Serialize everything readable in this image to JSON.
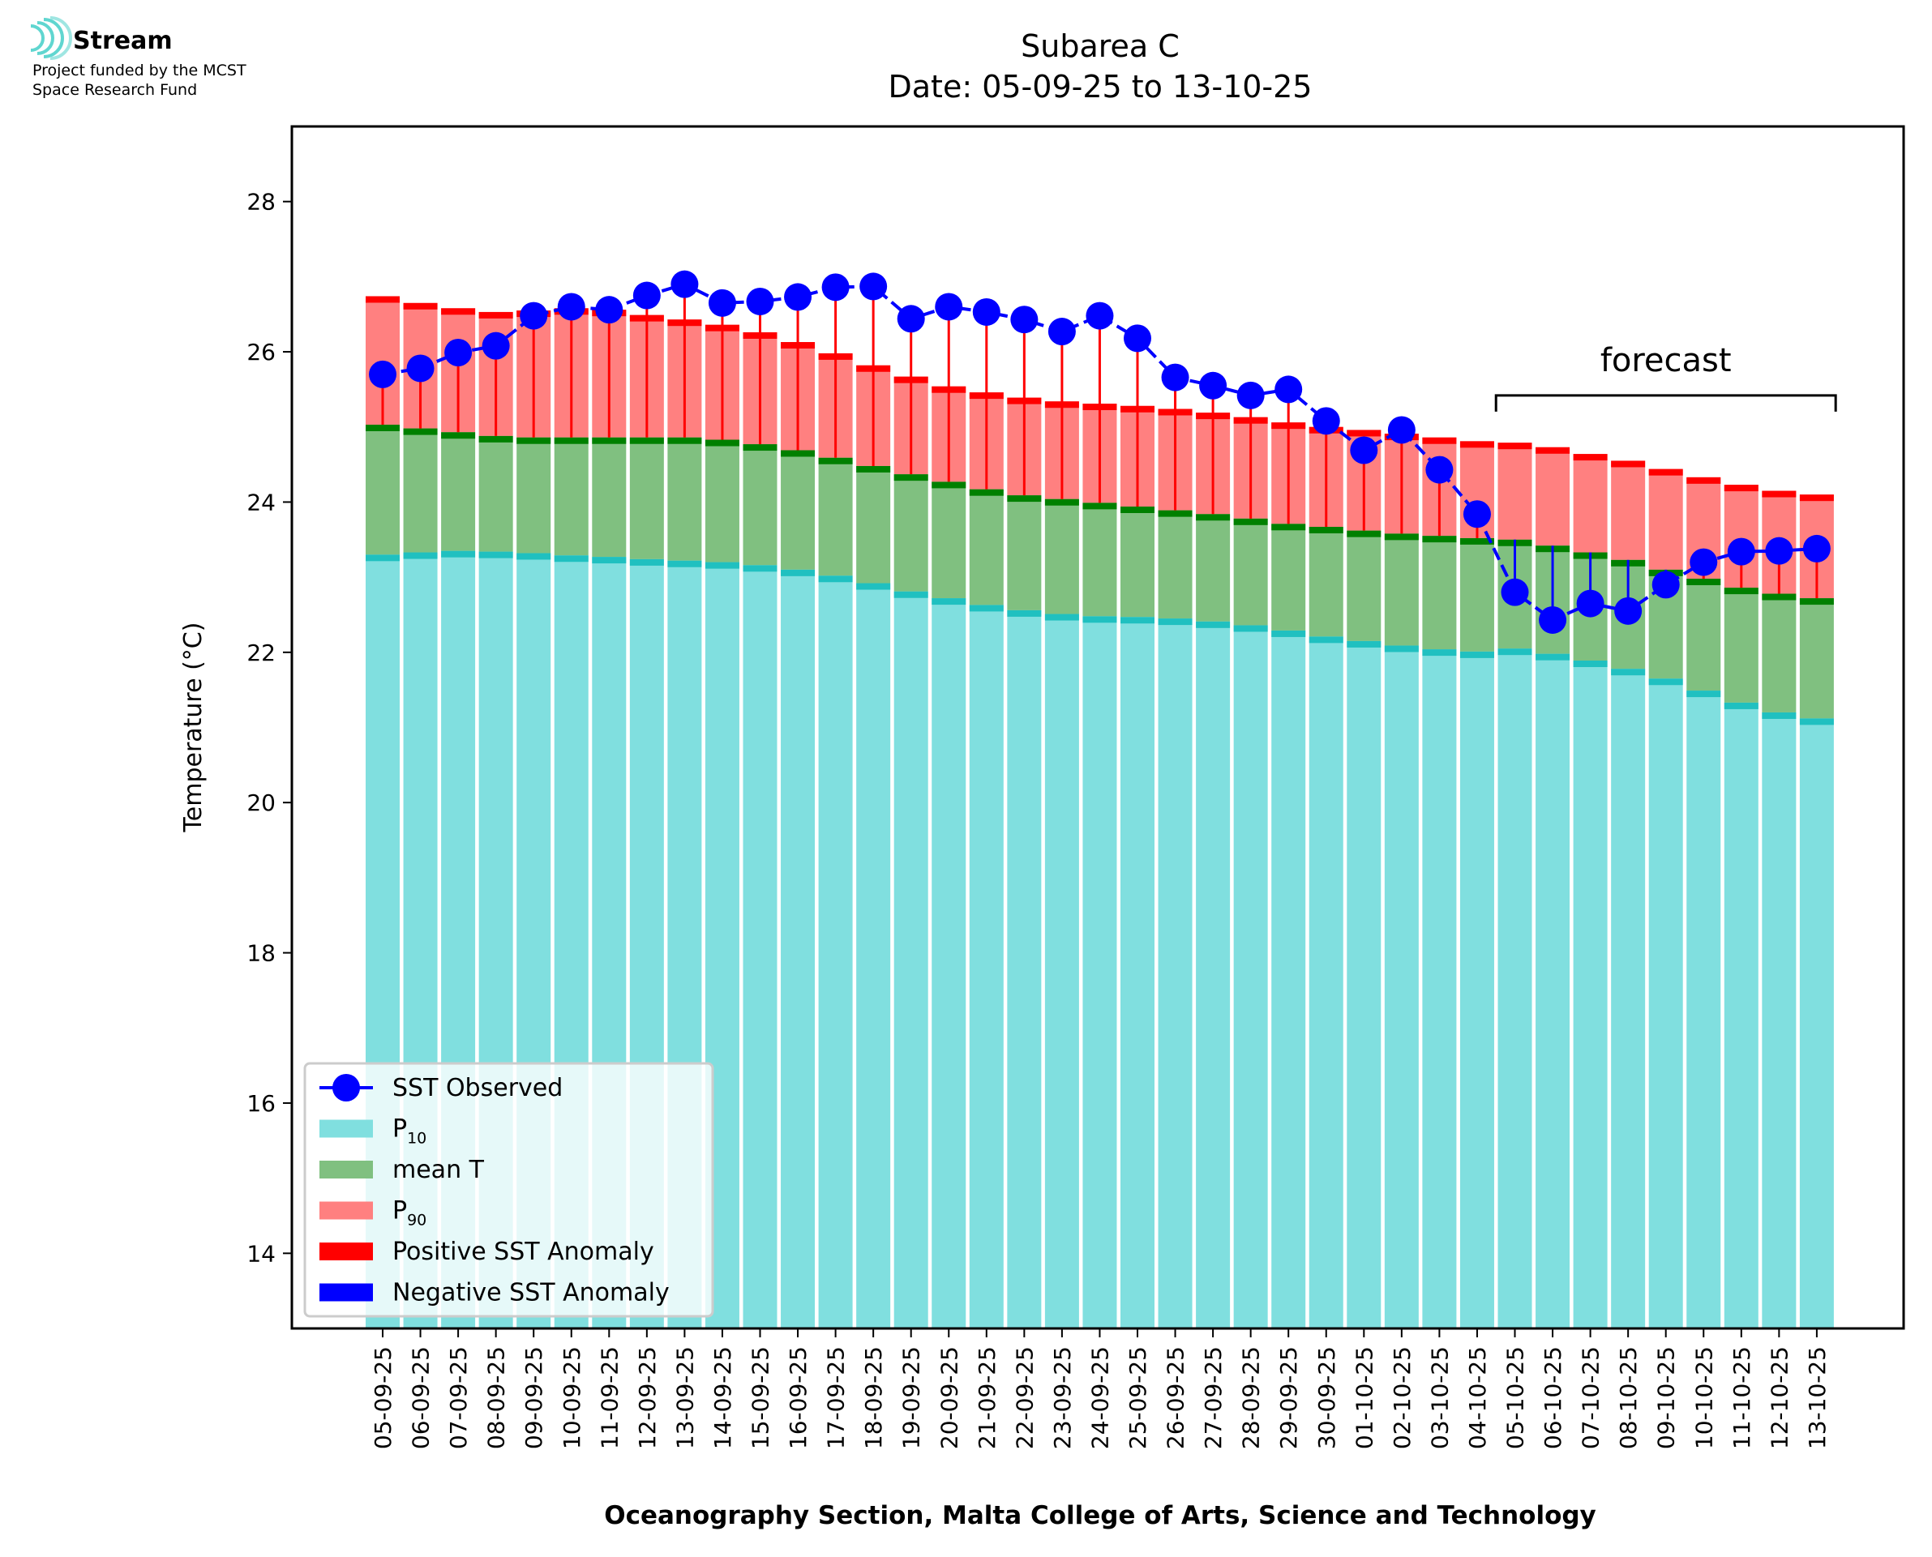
{
  "logo": {
    "name": "Stream",
    "line1": "Project funded by the MCST",
    "line2": "Space Research Fund"
  },
  "chart_data": {
    "type": "bar",
    "title": "Subarea C",
    "subtitle": "Date: 05-09-25 to 13-10-25",
    "xlabel": "Oceanography Section, Malta College of Arts, Science and Technology",
    "ylabel": "Temperature (°C)",
    "ylim": [
      13,
      29
    ],
    "yticks": [
      14,
      16,
      18,
      20,
      22,
      24,
      26,
      28
    ],
    "grid": false,
    "legend_position": "lower-left",
    "annotation": "forecast",
    "forecast_categories": [
      "05-10-25",
      "13-10-25"
    ],
    "colors": {
      "p10": "#80dfdf",
      "p10_cap": "#20c0c0",
      "mean": "#80c080",
      "mean_cap": "#008000",
      "p90": "#ff8080",
      "p90_cap": "#ff0000",
      "positive_anomaly": "#ff0000",
      "negative_anomaly": "#0000ff",
      "sst": "#0000ff"
    },
    "categories": [
      "05-09-25",
      "06-09-25",
      "07-09-25",
      "08-09-25",
      "09-09-25",
      "10-09-25",
      "11-09-25",
      "12-09-25",
      "13-09-25",
      "14-09-25",
      "15-09-25",
      "16-09-25",
      "17-09-25",
      "18-09-25",
      "19-09-25",
      "20-09-25",
      "21-09-25",
      "22-09-25",
      "23-09-25",
      "24-09-25",
      "25-09-25",
      "26-09-25",
      "27-09-25",
      "28-09-25",
      "29-09-25",
      "30-09-25",
      "01-10-25",
      "02-10-25",
      "03-10-25",
      "04-10-25",
      "05-10-25",
      "06-10-25",
      "07-10-25",
      "08-10-25",
      "09-10-25",
      "10-10-25",
      "11-10-25",
      "12-10-25",
      "13-10-25"
    ],
    "series": [
      {
        "name": "P10",
        "values": [
          23.3,
          23.33,
          23.35,
          23.34,
          23.32,
          23.29,
          23.27,
          23.24,
          23.22,
          23.2,
          23.16,
          23.1,
          23.02,
          22.92,
          22.81,
          22.72,
          22.63,
          22.56,
          22.51,
          22.48,
          22.47,
          22.45,
          22.41,
          22.36,
          22.29,
          22.21,
          22.15,
          22.09,
          22.04,
          22.01,
          22.05,
          21.98,
          21.89,
          21.78,
          21.65,
          21.49,
          21.33,
          21.2,
          21.12
        ]
      },
      {
        "name": "mean T",
        "values": [
          25.03,
          24.98,
          24.93,
          24.88,
          24.86,
          24.86,
          24.86,
          24.86,
          24.86,
          24.83,
          24.77,
          24.69,
          24.59,
          24.48,
          24.37,
          24.27,
          24.17,
          24.09,
          24.04,
          23.99,
          23.94,
          23.89,
          23.84,
          23.78,
          23.71,
          23.67,
          23.62,
          23.58,
          23.55,
          23.52,
          23.5,
          23.42,
          23.33,
          23.23,
          23.1,
          22.98,
          22.86,
          22.78,
          22.72
        ]
      },
      {
        "name": "P90",
        "values": [
          26.74,
          26.65,
          26.58,
          26.53,
          26.55,
          26.58,
          26.56,
          26.49,
          26.43,
          26.36,
          26.26,
          26.13,
          25.98,
          25.82,
          25.67,
          25.54,
          25.46,
          25.39,
          25.34,
          25.31,
          25.28,
          25.24,
          25.19,
          25.13,
          25.06,
          25.0,
          24.96,
          24.91,
          24.86,
          24.81,
          24.79,
          24.73,
          24.64,
          24.55,
          24.44,
          24.33,
          24.23,
          24.15,
          24.1
        ]
      },
      {
        "name": "SST Observed",
        "values": [
          25.7,
          25.78,
          25.99,
          26.08,
          26.48,
          26.6,
          26.56,
          26.75,
          26.9,
          26.65,
          26.67,
          26.73,
          26.86,
          26.87,
          26.44,
          26.6,
          26.53,
          26.43,
          26.27,
          26.48,
          26.18,
          25.66,
          25.55,
          25.42,
          25.5,
          25.08,
          24.69,
          24.96,
          24.43,
          23.84,
          22.8,
          22.43,
          22.65,
          22.55,
          22.9,
          23.2,
          23.34,
          23.35,
          23.38
        ]
      }
    ],
    "legend": [
      {
        "label": "SST Observed",
        "kind": "marker",
        "color": "#0000ff"
      },
      {
        "label": "P",
        "sub": "10",
        "kind": "patch",
        "color": "#80dfdf"
      },
      {
        "label": "mean T",
        "kind": "patch",
        "color": "#80c080"
      },
      {
        "label": "P",
        "sub": "90",
        "kind": "patch",
        "color": "#ff8080"
      },
      {
        "label": "Positive SST Anomaly",
        "kind": "patch",
        "color": "#ff0000"
      },
      {
        "label": "Negative SST Anomaly",
        "kind": "patch",
        "color": "#0000ff"
      }
    ]
  }
}
